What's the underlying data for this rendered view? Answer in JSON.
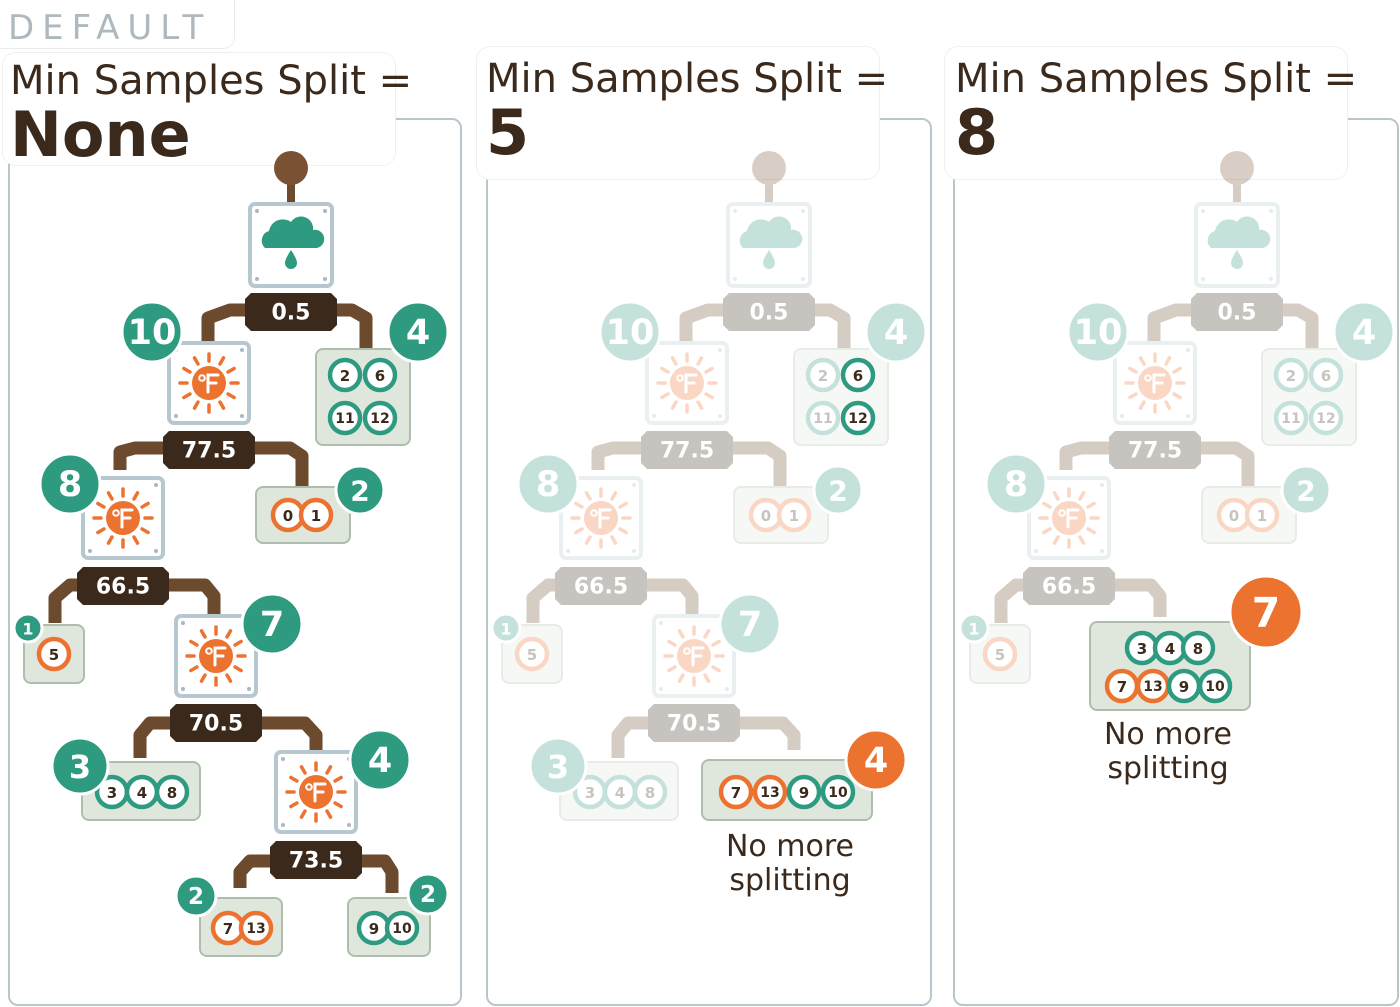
{
  "default_label": "DEFAULT",
  "panels": [
    {
      "title": "Min Samples Split =",
      "value": "None"
    },
    {
      "title": "Min Samples Split =",
      "value": "5",
      "caption_line1": "No more",
      "caption_line2": "splitting"
    },
    {
      "title": "Min Samples Split =",
      "value": "8",
      "caption_line1": "No more",
      "caption_line2": "splitting"
    }
  ],
  "tree": {
    "thresholds": [
      "0.5",
      "77.5",
      "66.5",
      "70.5",
      "73.5"
    ],
    "counts": {
      "left_rain": "10",
      "right_rain": "4",
      "left_t1": "8",
      "right_t1": "2",
      "left_t2": "1",
      "right_t2": "7",
      "left_t3": "3",
      "right_t3": "4",
      "left_t4": "2",
      "right_t4": "2"
    },
    "leaves": {
      "rain_right": [
        "2",
        "6",
        "11",
        "12"
      ],
      "t1_right": [
        "0",
        "1"
      ],
      "t2_left": [
        "5"
      ],
      "t3_left": [
        "3",
        "4",
        "8"
      ],
      "t4_left": [
        "7",
        "13"
      ],
      "t4_right": [
        "9",
        "10"
      ],
      "merged_5": [
        "7",
        "13",
        "9",
        "10"
      ],
      "merged_8": [
        "3",
        "4",
        "8",
        "7",
        "13",
        "9",
        "10"
      ]
    }
  },
  "colors": {
    "teal": "#2e9a80",
    "orange": "#ec7230",
    "dark_brown": "#3b2a1c",
    "leaf_fill": "#dfe7dc",
    "node_border": "#b7c7cf"
  },
  "icons": [
    "rain-cloud-icon",
    "temperature-sun-icon"
  ]
}
